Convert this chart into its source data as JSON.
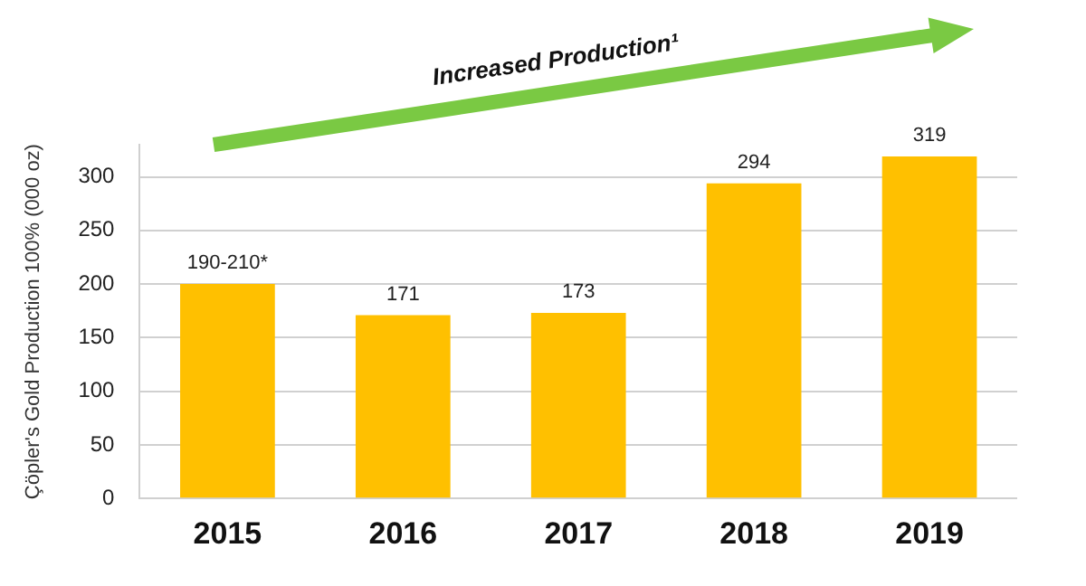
{
  "chart_data": {
    "type": "bar",
    "ylabel": "Çöpler's Gold Production 100% (000 oz)",
    "categories": [
      "2015",
      "2016",
      "2017",
      "2018",
      "2019"
    ],
    "values": [
      200,
      171,
      173,
      294,
      319
    ],
    "value_labels": [
      "190-210*",
      "171",
      "173",
      "294",
      "319"
    ],
    "color": "#ffc000",
    "ylim": [
      0,
      330
    ],
    "yticks": [
      0,
      50,
      100,
      150,
      200,
      250,
      300
    ],
    "grid": "y",
    "legend": false,
    "annotations": [
      "Increased Production¹"
    ]
  }
}
